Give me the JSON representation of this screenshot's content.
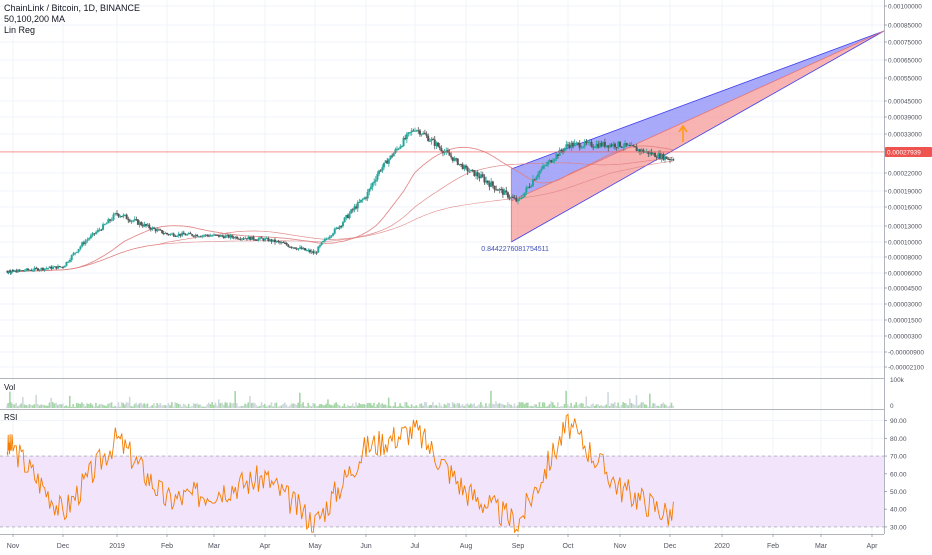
{
  "header": {
    "symbol_line": "ChainLink / Bitcoin, 1D, BINANCE",
    "ma_line": "50,100,200 MA",
    "indicator_line": "Lin Reg"
  },
  "colors": {
    "up_candle": "#26a69a",
    "down_candle": "#555555",
    "ma_line": "#e08080",
    "price_line": "#ef5350",
    "channel_upper_fill": "#8c8cf7",
    "channel_lower_fill": "#f59a9a",
    "channel_line": "#3f3ff0",
    "rsi_line": "#f57c00",
    "rsi_band": "#f1e4fb",
    "arrow": "#ff9800",
    "annotation_text": "#3f51b5"
  },
  "price_pane": {
    "current_price_label": "0.00027939",
    "annotation_text": "0.8442276081754511",
    "y_tick_labels": [
      "0.00100000",
      "0.00085000",
      "0.00075000",
      "0.00065000",
      "0.00055000",
      "0.00045000",
      "0.00039000",
      "0.00033000",
      "0.00022000",
      "0.00019000",
      "0.00016000",
      "0.00013000",
      "0.00010000",
      "0.00008000",
      "0.00006000",
      "0.00004500",
      "0.00003000",
      "0.00001500",
      "0.00000300",
      "-0.00000900",
      "-0.00002100"
    ]
  },
  "volume_pane": {
    "label": "Vol",
    "y_tick_labels": [
      "100k",
      "0"
    ]
  },
  "rsi_pane": {
    "label": "RSI",
    "y_tick_labels": [
      "90.00",
      "80.00",
      "70.00",
      "60.00",
      "50.00",
      "40.00",
      "30.00"
    ]
  },
  "x_axis": {
    "tick_labels": [
      "Nov",
      "Dec",
      "2019",
      "Feb",
      "Mar",
      "Apr",
      "May",
      "Jun",
      "Jul",
      "Aug",
      "Sep",
      "Oct",
      "Nov",
      "Dec",
      "2020",
      "Feb",
      "Mar",
      "Apr"
    ]
  },
  "chart_data": [
    {
      "type": "candlestick",
      "title": "ChainLink / Bitcoin, 1D, BINANCE",
      "x_range": [
        "2018-10",
        "2020-04"
      ],
      "price_scale": "custom (non-linear tick spacing as printed)",
      "close_series_approx": {
        "x": [
          "2018-11",
          "2018-12",
          "2019-01",
          "2019-02",
          "2019-03",
          "2019-04",
          "2019-05",
          "2019-06",
          "2019-07",
          "2019-08",
          "2019-09",
          "2019-10",
          "2019-11",
          "2019-12"
        ],
        "y": [
          6.2e-05,
          6.8e-05,
          0.00015,
          0.000115,
          0.000112,
          0.000105,
          8.5e-05,
          0.00018,
          0.00035,
          0.00023,
          0.00017,
          0.0003,
          0.0003,
          0.00026
        ]
      },
      "moving_averages": [
        "50",
        "100",
        "200"
      ],
      "last_price": 0.00027939,
      "regression_value_label": 0.8442276081754511,
      "grid": true
    },
    {
      "type": "bar",
      "title": "Vol",
      "y_ticks": [
        "100k",
        "0"
      ]
    },
    {
      "type": "line",
      "title": "RSI",
      "ylim": [
        26,
        96
      ],
      "band": [
        30,
        70
      ],
      "x": [
        "2018-11",
        "2018-12",
        "2019-01",
        "2019-02",
        "2019-03",
        "2019-04",
        "2019-05",
        "2019-06",
        "2019-07",
        "2019-08",
        "2019-09",
        "2019-10",
        "2019-11",
        "2019-12"
      ],
      "y": [
        75,
        38,
        80,
        45,
        50,
        58,
        32,
        75,
        85,
        50,
        32,
        88,
        52,
        37
      ]
    }
  ]
}
